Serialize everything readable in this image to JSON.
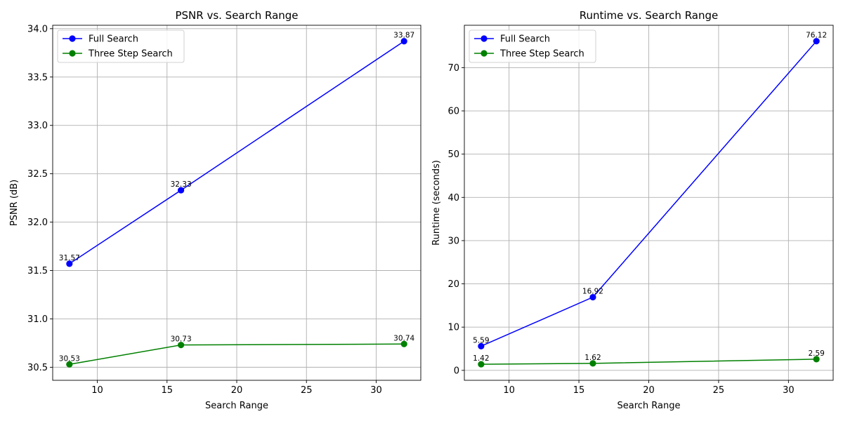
{
  "chart_data": [
    {
      "type": "line",
      "title": "PSNR vs. Search Range",
      "xlabel": "Search Range",
      "ylabel": "PSNR (dB)",
      "xlim": [
        6.8,
        33.2
      ],
      "ylim": [
        30.365,
        34.035
      ],
      "xticks": [
        10,
        15,
        20,
        25,
        30
      ],
      "yticks": [
        30.5,
        31.0,
        31.5,
        32.0,
        32.5,
        33.0,
        33.5,
        34.0
      ],
      "ytick_format": 1,
      "grid": true,
      "legend": "upper-left",
      "series": [
        {
          "name": "Full Search",
          "color": "#0000ff",
          "x": [
            8,
            16,
            32
          ],
          "values": [
            31.57,
            32.33,
            33.87
          ],
          "labels": [
            "31.57",
            "32.33",
            "33.87"
          ]
        },
        {
          "name": "Three Step Search",
          "color": "#008000",
          "x": [
            8,
            16,
            32
          ],
          "values": [
            30.53,
            30.73,
            30.74
          ],
          "labels": [
            "30.53",
            "30.73",
            "30.74"
          ]
        }
      ]
    },
    {
      "type": "line",
      "title": "Runtime vs. Search Range",
      "xlabel": "Search Range",
      "ylabel": "Runtime (seconds)",
      "xlim": [
        6.8,
        33.2
      ],
      "ylim": [
        -2.3,
        79.8
      ],
      "xticks": [
        10,
        15,
        20,
        25,
        30
      ],
      "yticks": [
        0,
        10,
        20,
        30,
        40,
        50,
        60,
        70
      ],
      "ytick_format": 0,
      "grid": true,
      "legend": "upper-left",
      "series": [
        {
          "name": "Full Search",
          "color": "#0000ff",
          "x": [
            8,
            16,
            32
          ],
          "values": [
            5.59,
            16.92,
            76.12
          ],
          "labels": [
            "5.59",
            "16.92",
            "76.12"
          ]
        },
        {
          "name": "Three Step Search",
          "color": "#008000",
          "x": [
            8,
            16,
            32
          ],
          "values": [
            1.42,
            1.62,
            2.59
          ],
          "labels": [
            "1.42",
            "1.62",
            "2.59"
          ]
        }
      ]
    }
  ]
}
